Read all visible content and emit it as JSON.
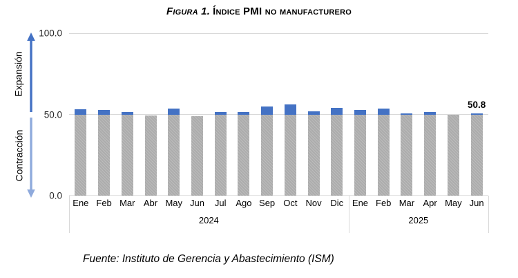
{
  "title": {
    "prefix": "Figura 1.",
    "main": "Índice PMI no manufacturero"
  },
  "axis": {
    "expansion_label": "Expansión",
    "contraction_label": "Contracción"
  },
  "chart_data": {
    "type": "bar",
    "title": "Figura 1. Índice PMI no manufacturero",
    "categories": [
      "Ene",
      "Feb",
      "Mar",
      "Abr",
      "May",
      "Jun",
      "Jul",
      "Ago",
      "Sep",
      "Oct",
      "Nov",
      "Dic",
      "Ene",
      "Feb",
      "Mar",
      "Apr",
      "May",
      "Jun"
    ],
    "values": [
      53.4,
      52.6,
      51.4,
      49.4,
      53.8,
      48.8,
      51.4,
      51.5,
      54.9,
      56.0,
      52.1,
      54.1,
      52.8,
      53.5,
      50.8,
      51.6,
      49.9,
      50.8
    ],
    "year_groups": [
      {
        "label": "2024",
        "months": 12
      },
      {
        "label": "2025",
        "months": 6
      }
    ],
    "threshold": 50,
    "ylim": [
      0,
      100
    ],
    "yticks": [
      {
        "label": "100.0",
        "value": 100
      },
      {
        "label": "50.0",
        "value": 50
      },
      {
        "label": "0.0",
        "value": 0
      }
    ],
    "gridlines_at": [
      100,
      50,
      0
    ],
    "annotation": {
      "index": 17,
      "text": "50.8"
    },
    "legend": null,
    "colors": {
      "above_threshold": "#4472c4",
      "bar_gray": "#acacac",
      "gridline": "#d9d9d9",
      "arrow_up": "#4472c4",
      "arrow_down": "#8faadc"
    }
  },
  "source": "Fuente: Instituto de Gerencia y Abastecimiento (ISM)"
}
